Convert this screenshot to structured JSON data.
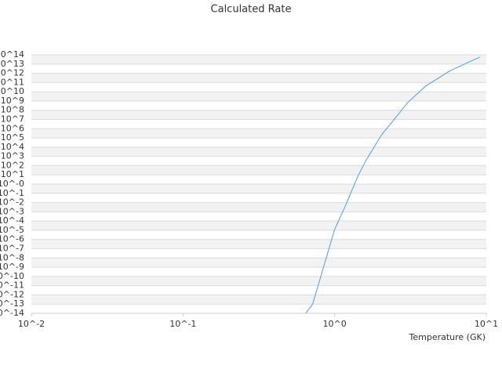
{
  "chart_data": {
    "type": "line",
    "title": "Calculated Rate",
    "xlabel": "Temperature (GK)",
    "xscale": "log",
    "yscale": "log",
    "grid": true,
    "xlim": [
      0.01,
      10
    ],
    "ylim": [
      1e-14,
      100000000000000.0
    ],
    "xticks": [
      {
        "value": 0.01,
        "label": "10^-2"
      },
      {
        "value": 0.1,
        "label": "10^-1"
      },
      {
        "value": 1,
        "label": "10^0"
      },
      {
        "value": 10,
        "label": "10^1"
      }
    ],
    "yticks": [
      {
        "value": 1e-14,
        "label": "10^-14"
      },
      {
        "value": 1e-13,
        "label": "10^-13"
      },
      {
        "value": 1e-12,
        "label": "10^-12"
      },
      {
        "value": 1e-11,
        "label": "10^-11"
      },
      {
        "value": 1e-10,
        "label": "10^-10"
      },
      {
        "value": 1e-09,
        "label": "10^-9"
      },
      {
        "value": 1e-08,
        "label": "10^-8"
      },
      {
        "value": 1e-07,
        "label": "10^-7"
      },
      {
        "value": 1e-06,
        "label": "10^-6"
      },
      {
        "value": 1e-05,
        "label": "10^-5"
      },
      {
        "value": 0.0001,
        "label": "10^-4"
      },
      {
        "value": 0.001,
        "label": "10^-3"
      },
      {
        "value": 0.01,
        "label": "10^-2"
      },
      {
        "value": 0.1,
        "label": "10^-1"
      },
      {
        "value": 1,
        "label": "10^-0"
      },
      {
        "value": 10,
        "label": "10^1"
      },
      {
        "value": 100,
        "label": "10^2"
      },
      {
        "value": 1000,
        "label": "10^3"
      },
      {
        "value": 10000.0,
        "label": "10^4"
      },
      {
        "value": 100000.0,
        "label": "10^5"
      },
      {
        "value": 1000000.0,
        "label": "10^6"
      },
      {
        "value": 10000000.0,
        "label": "10^7"
      },
      {
        "value": 100000000.0,
        "label": "10^8"
      },
      {
        "value": 1000000000.0,
        "label": "10^9"
      },
      {
        "value": 10000000000.0,
        "label": "10^10"
      },
      {
        "value": 100000000000.0,
        "label": "10^11"
      },
      {
        "value": 1000000000000.0,
        "label": "10^12"
      },
      {
        "value": 10000000000000.0,
        "label": "10^13"
      },
      {
        "value": 100000000000000.0,
        "label": "10^14"
      }
    ],
    "x": [
      0.644,
      0.716,
      1.0,
      1.17,
      1.43,
      1.63,
      2.04,
      2.41,
      3.03,
      3.98,
      5.7,
      7.5,
      9.06
    ],
    "series": [
      {
        "color": "#4a9de0",
        "values": [
          1e-14,
          1e-13,
          1.26e-05,
          0.0035,
          8.7,
          525,
          220000.0,
          6200000.0,
          670000000.0,
          41000000000.0,
          1660000000000.0,
          14000000000000.0,
          56000000000000.0
        ]
      }
    ]
  }
}
